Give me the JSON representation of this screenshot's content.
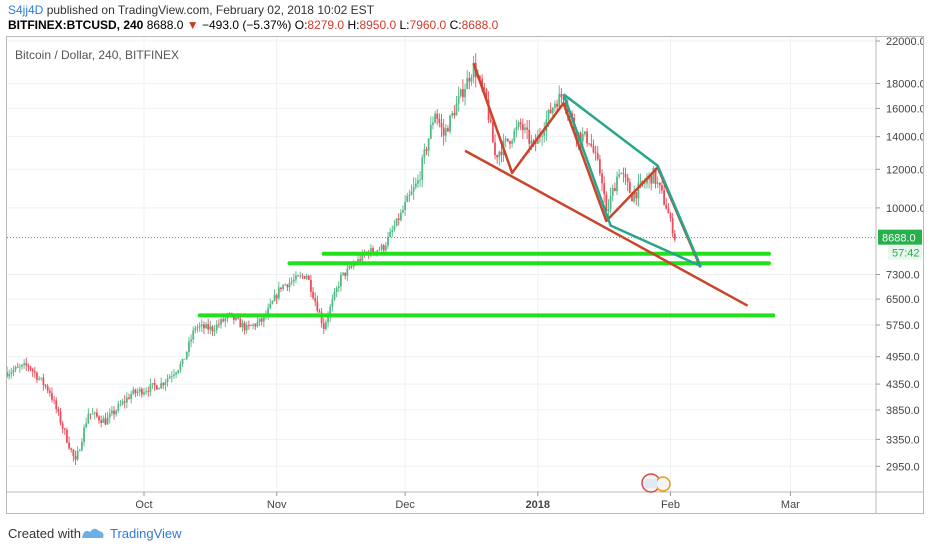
{
  "header": {
    "username": "S4jj4D",
    "published_text": "published on TradingView.com, February 02, 2018 10:02 EST",
    "symbol": "BITFINEX:BTCUSD, 240",
    "last": "8688.0",
    "change": "−493.0 (−5.37%)",
    "o_label": "O:",
    "o_value": "8279.0",
    "h_label": "H:",
    "h_value": "8950.0",
    "l_label": "L:",
    "l_value": "7960.0",
    "c_label": "C:",
    "c_value": "8688.0"
  },
  "footer": {
    "created_with": "Created with",
    "brand": "TradingView"
  },
  "chart_data": {
    "type": "candlestick",
    "title": "Bitcoin / Dollar, 240, BITFINEX",
    "y_scale": "log",
    "ylim": [
      2650,
      22000
    ],
    "y_ticks": [
      {
        "value": 22000,
        "label": "22000.0"
      },
      {
        "value": 18000,
        "label": "18000.0"
      },
      {
        "value": 16000,
        "label": "16000.0"
      },
      {
        "value": 14000,
        "label": "14000.0"
      },
      {
        "value": 12000,
        "label": "12000.0"
      },
      {
        "value": 10000,
        "label": "10000.0"
      },
      {
        "value": 7300,
        "label": "7300.0"
      },
      {
        "value": 6500,
        "label": "6500.0"
      },
      {
        "value": 5750,
        "label": "5750.0"
      },
      {
        "value": 4950,
        "label": "4950.0"
      },
      {
        "value": 4350,
        "label": "4350.0"
      },
      {
        "value": 3850,
        "label": "3850.0"
      },
      {
        "value": 3350,
        "label": "3350.0"
      },
      {
        "value": 2950,
        "label": "2950.0"
      }
    ],
    "x_range": [
      "2017-08-30",
      "2018-03-21"
    ],
    "x_ticks": [
      {
        "date": "2017-10-01",
        "label": "Oct"
      },
      {
        "date": "2017-11-01",
        "label": "Nov"
      },
      {
        "date": "2017-12-01",
        "label": "Dec"
      },
      {
        "date": "2018-01-01",
        "label": "2018",
        "bold": true
      },
      {
        "date": "2018-02-01",
        "label": "Feb"
      },
      {
        "date": "2018-03-01",
        "label": "Mar"
      }
    ],
    "price_anchors": [
      {
        "date": "2017-08-30",
        "price": 4600
      },
      {
        "date": "2017-09-04",
        "price": 4750
      },
      {
        "date": "2017-09-09",
        "price": 4200
      },
      {
        "date": "2017-09-15",
        "price": 3000
      },
      {
        "date": "2017-09-18",
        "price": 3800
      },
      {
        "date": "2017-09-22",
        "price": 3650
      },
      {
        "date": "2017-09-28",
        "price": 4150
      },
      {
        "date": "2017-10-05",
        "price": 4350
      },
      {
        "date": "2017-10-10",
        "price": 4800
      },
      {
        "date": "2017-10-13",
        "price": 5700
      },
      {
        "date": "2017-10-17",
        "price": 5650
      },
      {
        "date": "2017-10-21",
        "price": 6000
      },
      {
        "date": "2017-10-25",
        "price": 5650
      },
      {
        "date": "2017-10-29",
        "price": 5900
      },
      {
        "date": "2017-11-02",
        "price": 6900
      },
      {
        "date": "2017-11-08",
        "price": 7300
      },
      {
        "date": "2017-11-12",
        "price": 5700
      },
      {
        "date": "2017-11-16",
        "price": 7200
      },
      {
        "date": "2017-11-22",
        "price": 8100
      },
      {
        "date": "2017-11-26",
        "price": 8300
      },
      {
        "date": "2017-11-30",
        "price": 9700
      },
      {
        "date": "2017-12-04",
        "price": 11300
      },
      {
        "date": "2017-12-08",
        "price": 15800
      },
      {
        "date": "2017-12-10",
        "price": 14100
      },
      {
        "date": "2017-12-14",
        "price": 17000
      },
      {
        "date": "2017-12-17",
        "price": 19500
      },
      {
        "date": "2017-12-20",
        "price": 16500
      },
      {
        "date": "2017-12-22",
        "price": 12800
      },
      {
        "date": "2017-12-24",
        "price": 13400
      },
      {
        "date": "2017-12-28",
        "price": 14800
      },
      {
        "date": "2017-12-31",
        "price": 13300
      },
      {
        "date": "2018-01-05",
        "price": 16500
      },
      {
        "date": "2018-01-07",
        "price": 17100
      },
      {
        "date": "2018-01-10",
        "price": 14200
      },
      {
        "date": "2018-01-13",
        "price": 13800
      },
      {
        "date": "2018-01-16",
        "price": 11500
      },
      {
        "date": "2018-01-17",
        "price": 9700
      },
      {
        "date": "2018-01-20",
        "price": 12000
      },
      {
        "date": "2018-01-23",
        "price": 10600
      },
      {
        "date": "2018-01-28",
        "price": 11700
      },
      {
        "date": "2018-01-31",
        "price": 10100
      },
      {
        "date": "2018-02-02",
        "price": 8688
      }
    ],
    "drawings": [
      {
        "kind": "horizontal",
        "color": "#22e01a",
        "date_start": "2017-11-12",
        "date_end": "2018-02-24",
        "price": 8050
      },
      {
        "kind": "horizontal",
        "color": "#22e01a",
        "date_start": "2017-11-04",
        "date_end": "2018-02-24",
        "price": 7700
      },
      {
        "kind": "horizontal",
        "color": "#22e01a",
        "date_start": "2017-10-14",
        "date_end": "2018-02-25",
        "price": 6020
      },
      {
        "kind": "trendline",
        "color": "#c9442a",
        "points": [
          {
            "date": "2017-12-15",
            "price": 13100
          },
          {
            "date": "2018-02-19",
            "price": 6300
          }
        ]
      },
      {
        "kind": "polyline",
        "color": "#c9442a",
        "points": [
          {
            "date": "2017-12-17",
            "price": 19800
          },
          {
            "date": "2017-12-26",
            "price": 11800
          },
          {
            "date": "2018-01-07",
            "price": 16400
          },
          {
            "date": "2018-01-17",
            "price": 9400
          },
          {
            "date": "2018-01-29",
            "price": 12100
          },
          {
            "date": "2018-02-08",
            "price": 7550
          }
        ]
      },
      {
        "kind": "polyline",
        "color": "#26a68a",
        "points": [
          {
            "date": "2018-01-07",
            "price": 17100
          },
          {
            "date": "2018-01-29",
            "price": 12200
          },
          {
            "date": "2018-02-08",
            "price": 7600
          },
          {
            "date": "2018-01-18",
            "price": 9200
          },
          {
            "date": "2018-01-07",
            "price": 17100
          }
        ]
      }
    ],
    "current_price": {
      "value": 8688,
      "label": "8688.0",
      "countdown": "57:42",
      "color": "#25b04a"
    },
    "grid": true,
    "legend": "none"
  }
}
